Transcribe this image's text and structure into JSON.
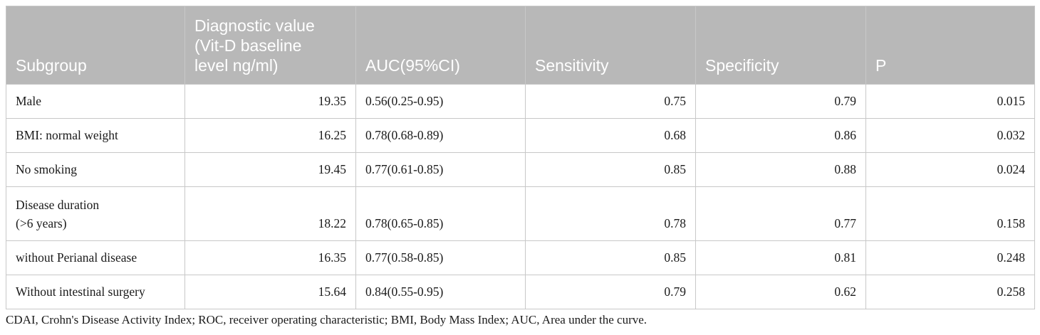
{
  "table": {
    "headers": [
      "Subgroup",
      "Diagnostic value (Vit-D baseline level ng/ml)",
      "AUC(95%CI)",
      "Sensitivity",
      "Specificity",
      "P"
    ],
    "header_lines": {
      "diagnostic": [
        "Diagnostic value",
        "(Vit-D baseline",
        "level ng/ml)"
      ]
    },
    "rows": [
      {
        "subgroup": "Male",
        "value": "19.35",
        "auc": "0.56(0.25-0.95)",
        "sensitivity": "0.75",
        "specificity": "0.79",
        "p": "0.015"
      },
      {
        "subgroup": "BMI: normal weight",
        "value": "16.25",
        "auc": "0.78(0.68-0.89)",
        "sensitivity": "0.68",
        "specificity": "0.86",
        "p": "0.032"
      },
      {
        "subgroup": "No smoking",
        "value": "19.45",
        "auc": "0.77(0.61-0.85)",
        "sensitivity": "0.85",
        "specificity": "0.88",
        "p": "0.024"
      },
      {
        "subgroup_lines": [
          "Disease duration",
          "(>6 years)"
        ],
        "value": "18.22",
        "auc": "0.78(0.65-0.85)",
        "sensitivity": "0.78",
        "specificity": "0.77",
        "p": "0.158"
      },
      {
        "subgroup": "without Perianal disease",
        "value": "16.35",
        "auc": "0.77(0.58-0.85)",
        "sensitivity": "0.85",
        "specificity": "0.81",
        "p": "0.248"
      },
      {
        "subgroup": "Without intestinal surgery",
        "value": "15.64",
        "auc": "0.84(0.55-0.95)",
        "sensitivity": "0.79",
        "specificity": "0.62",
        "p": "0.258"
      }
    ]
  },
  "footnote": "CDAI, Crohn's Disease Activity Index; ROC, receiver operating characteristic; BMI, Body Mass Index; AUC, Area under the curve.",
  "colors": {
    "header_bg": "#b8b8b8",
    "header_text": "#ffffff",
    "border": "#c8c8c8",
    "body_text": "#1a1a1a"
  }
}
